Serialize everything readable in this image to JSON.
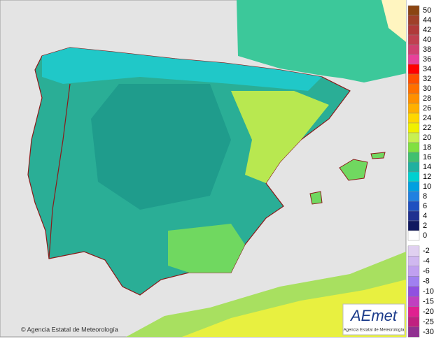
{
  "legend": {
    "positive": [
      {
        "label": "50",
        "color": "#8b4513"
      },
      {
        "label": "44",
        "color": "#a0402a"
      },
      {
        "label": "42",
        "color": "#b03a3a"
      },
      {
        "label": "40",
        "color": "#c04050"
      },
      {
        "label": "38",
        "color": "#d04070"
      },
      {
        "label": "36",
        "color": "#e8409a"
      },
      {
        "label": "34",
        "color": "#ff0000"
      },
      {
        "label": "32",
        "color": "#ff5000"
      },
      {
        "label": "30",
        "color": "#ff7000"
      },
      {
        "label": "28",
        "color": "#ff9000"
      },
      {
        "label": "26",
        "color": "#ffb000"
      },
      {
        "label": "24",
        "color": "#ffd700"
      },
      {
        "label": "22",
        "color": "#f0f000"
      },
      {
        "label": "20",
        "color": "#c8f050"
      },
      {
        "label": "18",
        "color": "#80e040"
      },
      {
        "label": "16",
        "color": "#40c070"
      },
      {
        "label": "14",
        "color": "#20b0a0"
      },
      {
        "label": "12",
        "color": "#00d0d0"
      },
      {
        "label": "10",
        "color": "#00a0e0"
      },
      {
        "label": "8",
        "color": "#2080e0"
      },
      {
        "label": "6",
        "color": "#2050c0"
      },
      {
        "label": "4",
        "color": "#203090"
      },
      {
        "label": "2",
        "color": "#101860"
      },
      {
        "label": "0",
        "color": "#ffffff"
      }
    ],
    "negative": [
      {
        "label": "-2",
        "color": "#e0d0f0"
      },
      {
        "label": "-4",
        "color": "#d0b8f0"
      },
      {
        "label": "-6",
        "color": "#c0a0f0"
      },
      {
        "label": "-8",
        "color": "#a080f0"
      },
      {
        "label": "-10",
        "color": "#9050e0"
      },
      {
        "label": "-15",
        "color": "#c040c0"
      },
      {
        "label": "-20",
        "color": "#e02090"
      },
      {
        "label": "-25",
        "color": "#c02080"
      },
      {
        "label": "-30",
        "color": "#903090"
      }
    ]
  },
  "footer": {
    "copyright": "© Agencia Estatal de Meteorología"
  },
  "logo": {
    "name": "AEmet",
    "subtitle": "Agencia Estatal de Meteorología"
  }
}
